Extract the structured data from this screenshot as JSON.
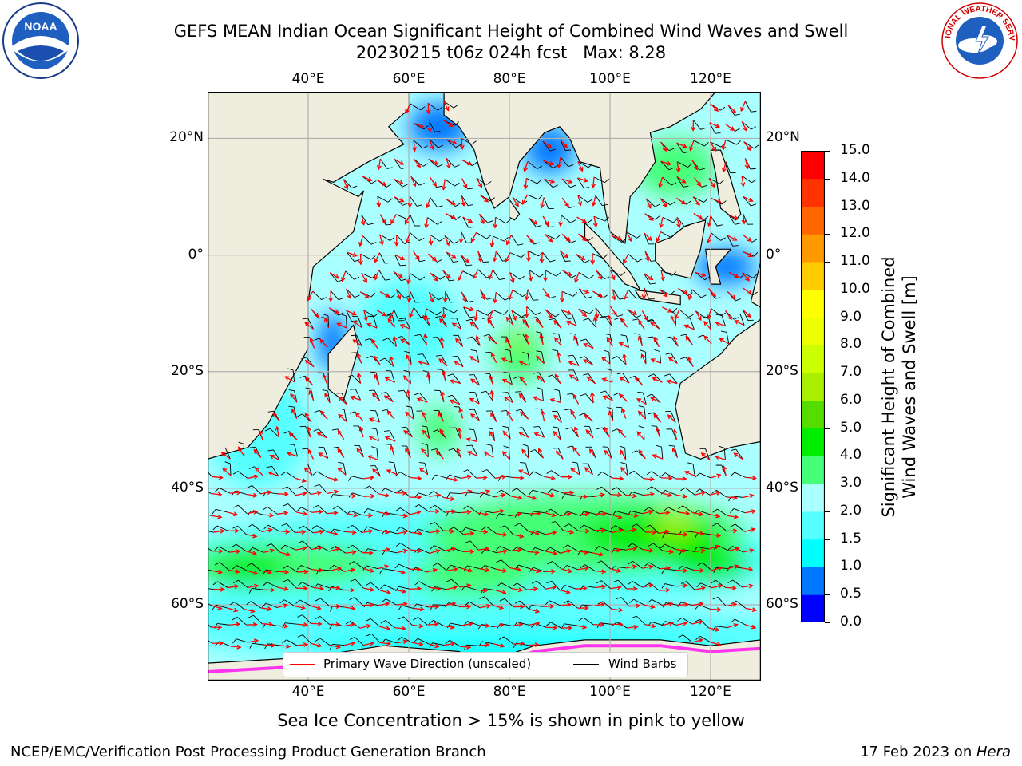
{
  "header": {
    "title_line1": "GEFS MEAN Indian Ocean Significant Height of Combined Wind Waves and Swell",
    "title_line2": "20230215 t06z 024h fcst   Max: 8.28"
  },
  "map": {
    "lon_ticks": [
      "40°E",
      "60°E",
      "80°E",
      "100°E",
      "120°E"
    ],
    "lat_ticks": [
      "20°N",
      "0°",
      "20°S",
      "40°S",
      "60°S"
    ],
    "region": {
      "lon_min": 20,
      "lon_max": 130,
      "lat_min": -73,
      "lat_max": 28
    },
    "max_value": 8.28,
    "colors": {
      "land": "#efedde",
      "coast": "#000000",
      "grid": "#b0b0b0",
      "wave_arrow": "#ff0000",
      "wind_barb": "#000000",
      "sea_ice": "#ff33ee"
    }
  },
  "colorbar": {
    "ticks": [
      "15.0",
      "14.0",
      "13.0",
      "12.0",
      "11.0",
      "10.0",
      "9.0",
      "8.0",
      "7.0",
      "6.0",
      "5.0",
      "4.0",
      "3.0",
      "2.0",
      "1.5",
      "1.0",
      "0.5",
      "0.0"
    ],
    "levels": [
      0.0,
      0.5,
      1.0,
      1.5,
      2.0,
      3.0,
      4.0,
      5.0,
      6.0,
      7.0,
      8.0,
      9.0,
      10.0,
      11.0,
      12.0,
      13.0,
      14.0,
      15.0
    ],
    "colors": [
      "#0000ff",
      "#0077ff",
      "#00ffff",
      "#55ffff",
      "#aaffff",
      "#44ff77",
      "#00ee00",
      "#55dd00",
      "#aaee00",
      "#ccff00",
      "#eeff00",
      "#ffff00",
      "#ffcc00",
      "#ff9900",
      "#ff6600",
      "#ff3300",
      "#ff0000"
    ],
    "label_line1": "Significant Height of Combined",
    "label_line2": "Wind Waves and Swell [m]"
  },
  "legend": {
    "wave_label": "Primary Wave Direction (unscaled)",
    "wind_label": "Wind Barbs"
  },
  "caption": "Sea Ice Concentration > 15% is shown in pink to yellow",
  "footer": {
    "left": "NCEP/EMC/Verification Post Processing Product Generation Branch",
    "date": "17 Feb 2023 on ",
    "host": "Hera"
  },
  "logos": {
    "noaa_text": "NOAA",
    "nws_text": "NATIONAL WEATHER SERVICE"
  }
}
